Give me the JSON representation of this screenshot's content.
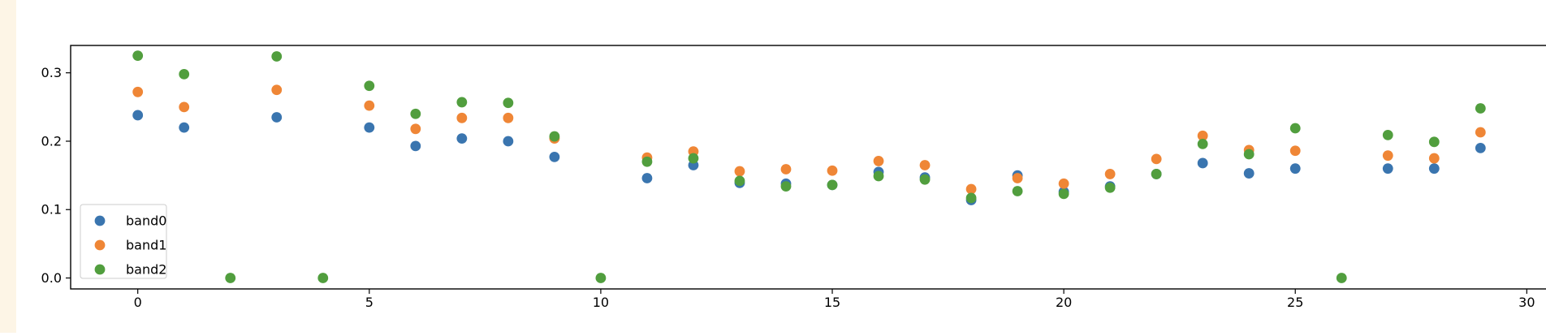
{
  "chart_data": {
    "type": "scatter",
    "title": "",
    "xlabel": "",
    "ylabel": "",
    "xlim": [
      -1.45,
      30.45
    ],
    "ylim": [
      -0.016,
      0.34
    ],
    "xticks": [
      0,
      5,
      10,
      15,
      20,
      25,
      30
    ],
    "yticks": [
      0.0,
      0.1,
      0.2,
      0.3
    ],
    "ytick_labels": [
      "0.0",
      "0.1",
      "0.2",
      "0.3"
    ],
    "grid": false,
    "legend_position": "lower-left",
    "series": [
      {
        "name": "band0",
        "color": "#3a75af",
        "points": [
          [
            0,
            0.238
          ],
          [
            1,
            0.22
          ],
          [
            3,
            0.235
          ],
          [
            5,
            0.22
          ],
          [
            6,
            0.193
          ],
          [
            7,
            0.204
          ],
          [
            8,
            0.2
          ],
          [
            9,
            0.177
          ],
          [
            11,
            0.146
          ],
          [
            12,
            0.165
          ],
          [
            13,
            0.139
          ],
          [
            14,
            0.138
          ],
          [
            15,
            0.136
          ],
          [
            16,
            0.155
          ],
          [
            17,
            0.147
          ],
          [
            18,
            0.114
          ],
          [
            19,
            0.15
          ],
          [
            20,
            0.126
          ],
          [
            21,
            0.134
          ],
          [
            22,
            0.152
          ],
          [
            23,
            0.168
          ],
          [
            24,
            0.153
          ],
          [
            25,
            0.16
          ],
          [
            27,
            0.16
          ],
          [
            28,
            0.16
          ],
          [
            29,
            0.19
          ]
        ]
      },
      {
        "name": "band1",
        "color": "#ef8636",
        "points": [
          [
            0,
            0.272
          ],
          [
            1,
            0.25
          ],
          [
            3,
            0.275
          ],
          [
            5,
            0.252
          ],
          [
            6,
            0.218
          ],
          [
            7,
            0.234
          ],
          [
            8,
            0.234
          ],
          [
            9,
            0.204
          ],
          [
            11,
            0.176
          ],
          [
            12,
            0.185
          ],
          [
            13,
            0.156
          ],
          [
            14,
            0.159
          ],
          [
            15,
            0.157
          ],
          [
            16,
            0.171
          ],
          [
            17,
            0.165
          ],
          [
            18,
            0.13
          ],
          [
            19,
            0.146
          ],
          [
            20,
            0.138
          ],
          [
            21,
            0.152
          ],
          [
            22,
            0.174
          ],
          [
            23,
            0.208
          ],
          [
            24,
            0.187
          ],
          [
            25,
            0.186
          ],
          [
            27,
            0.179
          ],
          [
            28,
            0.175
          ],
          [
            29,
            0.213
          ]
        ]
      },
      {
        "name": "band2",
        "color": "#519e3e",
        "points": [
          [
            0,
            0.325
          ],
          [
            1,
            0.298
          ],
          [
            2,
            0.0
          ],
          [
            3,
            0.324
          ],
          [
            4,
            0.0
          ],
          [
            5,
            0.281
          ],
          [
            6,
            0.24
          ],
          [
            7,
            0.257
          ],
          [
            8,
            0.256
          ],
          [
            9,
            0.207
          ],
          [
            10,
            0.0
          ],
          [
            11,
            0.17
          ],
          [
            12,
            0.175
          ],
          [
            13,
            0.142
          ],
          [
            14,
            0.134
          ],
          [
            15,
            0.136
          ],
          [
            16,
            0.149
          ],
          [
            17,
            0.144
          ],
          [
            18,
            0.117
          ],
          [
            19,
            0.127
          ],
          [
            20,
            0.123
          ],
          [
            21,
            0.132
          ],
          [
            22,
            0.152
          ],
          [
            23,
            0.196
          ],
          [
            24,
            0.181
          ],
          [
            25,
            0.219
          ],
          [
            26,
            0.0
          ],
          [
            27,
            0.209
          ],
          [
            28,
            0.199
          ],
          [
            29,
            0.248
          ]
        ]
      }
    ]
  }
}
